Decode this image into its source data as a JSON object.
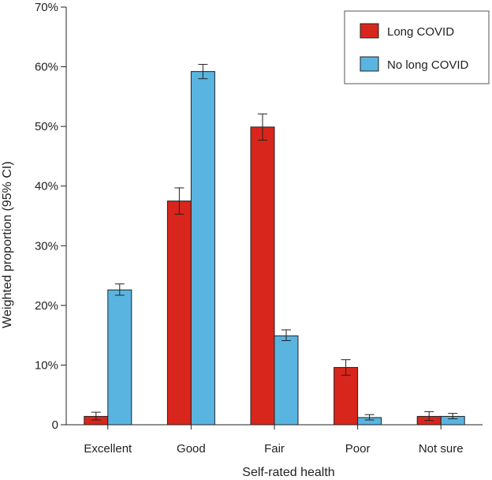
{
  "chart_data": {
    "type": "bar",
    "title": "",
    "xlabel": "Self-rated health",
    "ylabel": "Weighted proportion (95% CI)",
    "categories": [
      "Excellent",
      "Good",
      "Fair",
      "Poor",
      "Not sure"
    ],
    "ylim": [
      0,
      70
    ],
    "yticks": [
      0,
      10,
      20,
      30,
      40,
      50,
      60,
      70
    ],
    "ytick_labels": [
      "0",
      "10%",
      "20%",
      "30%",
      "40%",
      "50%",
      "60%",
      "70%"
    ],
    "grid": false,
    "legend_position": "top-right",
    "series": [
      {
        "name": "Long COVID",
        "color": "#d8261c",
        "values": [
          1.4,
          37.5,
          49.9,
          9.6,
          1.4
        ],
        "ci_low": [
          0.8,
          35.3,
          47.7,
          8.3,
          0.7
        ],
        "ci_high": [
          2.1,
          39.7,
          52.1,
          10.9,
          2.2
        ]
      },
      {
        "name": "No long COVID",
        "color": "#5ab4e0",
        "values": [
          22.6,
          59.2,
          14.9,
          1.2,
          1.4
        ],
        "ci_low": [
          21.7,
          58.0,
          14.1,
          0.8,
          1.0
        ],
        "ci_high": [
          23.6,
          60.4,
          15.9,
          1.7,
          1.9
        ]
      }
    ]
  }
}
